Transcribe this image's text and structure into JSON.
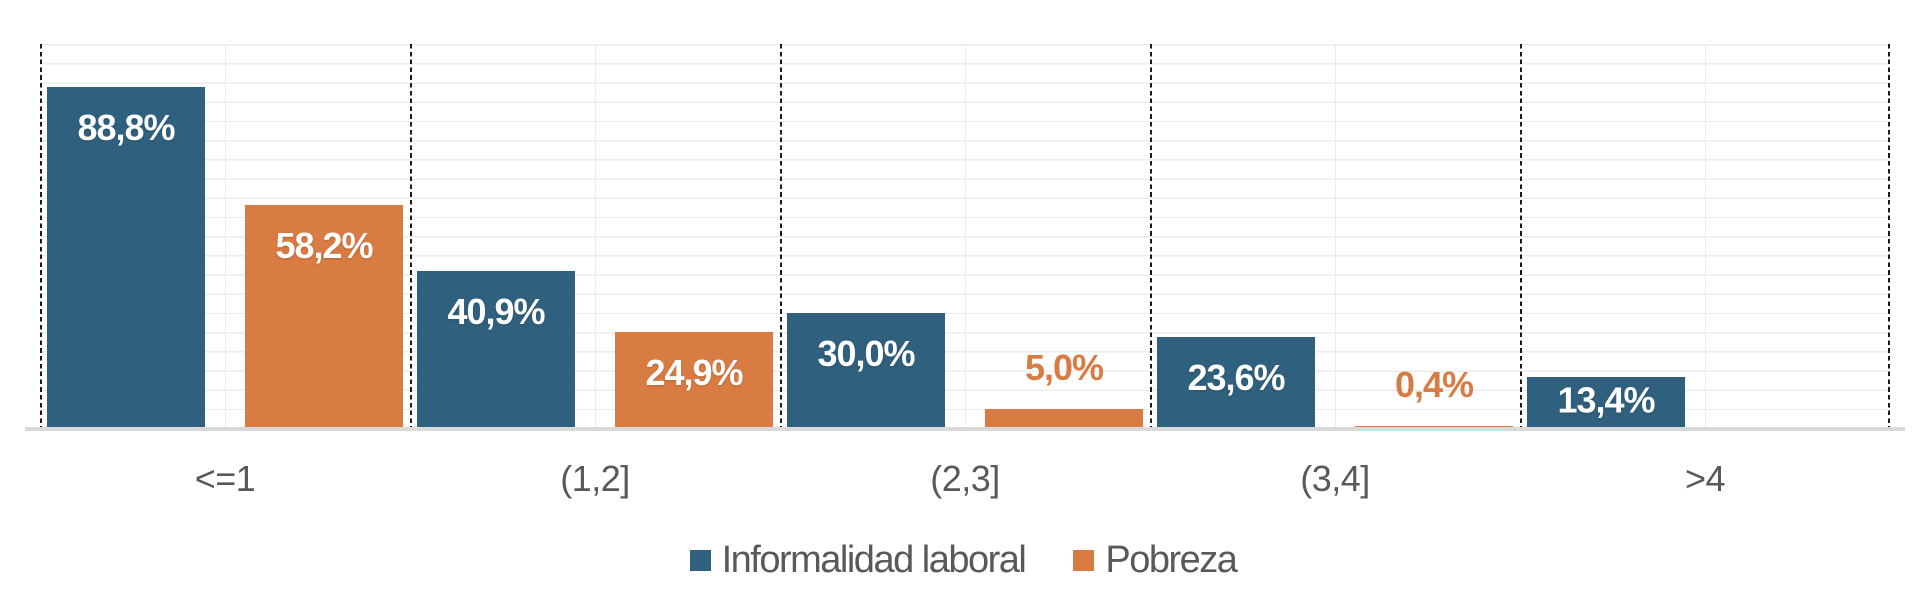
{
  "chart_data": {
    "type": "bar",
    "title": "",
    "xlabel": "",
    "ylabel": "",
    "ylim": [
      0,
      100
    ],
    "grid": "horizontal, every 5%",
    "legend_position": "bottom-center",
    "categories": [
      "<=1",
      "(1,2]",
      "(2,3]",
      "(3,4]",
      ">4"
    ],
    "series": [
      {
        "name": "Informalidad laboral",
        "color": "#2F617F",
        "values": [
          88.8,
          40.9,
          30.0,
          23.6,
          13.4
        ],
        "labels": [
          "88,8%",
          "40,9%",
          "30,0%",
          "23,6%",
          "13,4%"
        ]
      },
      {
        "name": "Pobreza",
        "color": "#D97C43",
        "values": [
          58.2,
          24.9,
          5.0,
          0.4,
          null
        ],
        "labels": [
          "58,2%",
          "24,9%",
          "5,0%",
          "0,4%",
          ""
        ]
      }
    ],
    "value_label_format": "comma-decimal percent"
  },
  "style": {
    "gridline_color": "#ececec",
    "axis_line_color": "#d9d9d9",
    "separator_line_color": "#1a1a1a",
    "category_text_color": "#595959",
    "legend_text_color": "#595959",
    "inside_label_color": "#ffffff"
  }
}
